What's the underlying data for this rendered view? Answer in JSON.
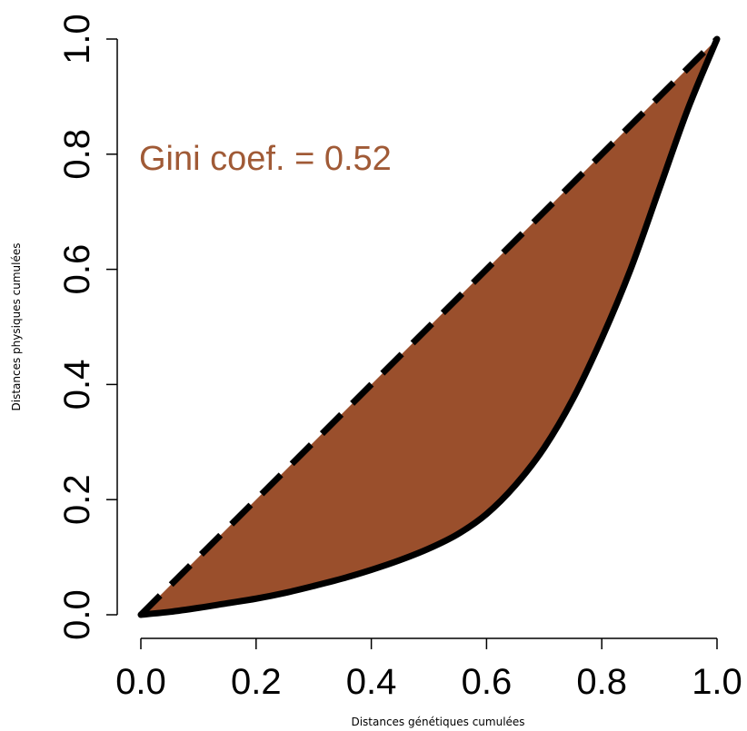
{
  "chart_data": {
    "type": "area",
    "xlabel": "Distances génétiques cumulées",
    "ylabel": "Distances physiques cumulées",
    "xlim": [
      0,
      1
    ],
    "ylim": [
      0,
      1
    ],
    "x_ticks": [
      "0.0",
      "0.2",
      "0.4",
      "0.6",
      "0.8",
      "1.0"
    ],
    "y_ticks": [
      "0.0",
      "0.2",
      "0.4",
      "0.6",
      "0.8",
      "1.0"
    ],
    "annotation": "Gini coef. = 0.52",
    "grid": false,
    "series": [
      {
        "style": "dashed",
        "color": "#000000",
        "x": [
          0,
          1
        ],
        "y": [
          0,
          1
        ]
      },
      {
        "style": "solid",
        "color": "#000000",
        "x": [
          0.0,
          0.05,
          0.1,
          0.15,
          0.2,
          0.25,
          0.3,
          0.35,
          0.4,
          0.45,
          0.5,
          0.55,
          0.6,
          0.65,
          0.7,
          0.75,
          0.8,
          0.85,
          0.9,
          0.95,
          1.0
        ],
        "y": [
          0.0,
          0.005,
          0.012,
          0.02,
          0.028,
          0.038,
          0.05,
          0.063,
          0.078,
          0.095,
          0.115,
          0.14,
          0.175,
          0.225,
          0.29,
          0.375,
          0.48,
          0.6,
          0.74,
          0.88,
          1.0
        ]
      }
    ],
    "fill_color": "#9a4f2c",
    "annotation_color": "#a05a36"
  }
}
